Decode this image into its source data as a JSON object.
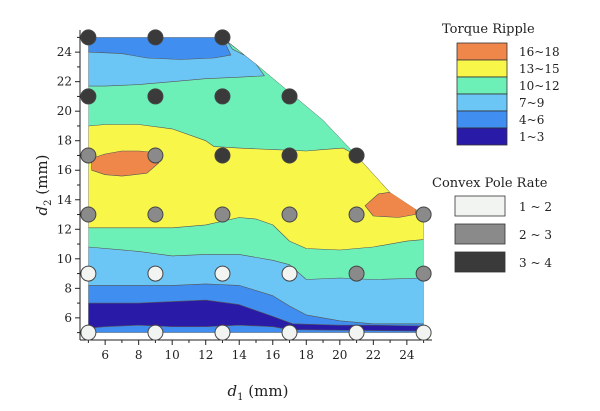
{
  "chart_data": {
    "type": "contour",
    "xlabel_main": "d",
    "xlabel_sub": "1",
    "xlabel_unit": " (mm)",
    "ylabel_main": "d",
    "ylabel_sub": "2",
    "ylabel_unit": " (mm)",
    "xlim": [
      4.5,
      25.5
    ],
    "ylim": [
      4.5,
      25.5
    ],
    "xticks": [
      6,
      8,
      10,
      12,
      14,
      16,
      18,
      20,
      22,
      24
    ],
    "yticks": [
      6,
      8,
      10,
      12,
      14,
      16,
      18,
      20,
      22,
      24
    ],
    "domain_boundary": [
      [
        5,
        5
      ],
      [
        25,
        5
      ],
      [
        25,
        13
      ],
      [
        23,
        14.5
      ],
      [
        21,
        17
      ],
      [
        19,
        19.4
      ],
      [
        17,
        21.3
      ],
      [
        15,
        23.2
      ],
      [
        13,
        25
      ],
      [
        5,
        25
      ]
    ],
    "contour_legend": {
      "title": "Torque Ripple",
      "items": [
        {
          "label": "16~18",
          "color": "#f0874a"
        },
        {
          "label": "13~15",
          "color": "#f9f64a"
        },
        {
          "label": "10~12",
          "color": "#6df0b8"
        },
        {
          "label": "7~9",
          "color": "#6cc6f5"
        },
        {
          "label": "4~6",
          "color": "#3f8ef0"
        },
        {
          "label": "1~3",
          "color": "#2a1aa8"
        }
      ]
    },
    "contour_regions": [
      {
        "level": "10~12",
        "points": [
          [
            5,
            5
          ],
          [
            25,
            5
          ],
          [
            25,
            13
          ],
          [
            23,
            14.5
          ],
          [
            21,
            17
          ],
          [
            19,
            19.4
          ],
          [
            17,
            21.3
          ],
          [
            15,
            23.2
          ],
          [
            13,
            25
          ],
          [
            5,
            25
          ]
        ]
      },
      {
        "level": "7~9",
        "points": [
          [
            5,
            21.7
          ],
          [
            6,
            21.7
          ],
          [
            8,
            21.8
          ],
          [
            10,
            22
          ],
          [
            12,
            22.2
          ],
          [
            14,
            22.3
          ],
          [
            15.5,
            22.4
          ],
          [
            15,
            23.2
          ],
          [
            14,
            24.1
          ],
          [
            13,
            25
          ],
          [
            5,
            25
          ]
        ]
      },
      {
        "level": "4~6",
        "points": [
          [
            5,
            24
          ],
          [
            7,
            23.9
          ],
          [
            8.5,
            23.6
          ],
          [
            10.5,
            23.5
          ],
          [
            12.5,
            23.6
          ],
          [
            13.5,
            23.8
          ],
          [
            13,
            25
          ],
          [
            5,
            25
          ]
        ]
      },
      {
        "level": "10~12",
        "points": [
          [
            13.3,
            24.7
          ],
          [
            14,
            24.1
          ],
          [
            14.3,
            23.8
          ],
          [
            13.6,
            24.2
          ]
        ]
      },
      {
        "level": "13~15",
        "points": [
          [
            5,
            12.1
          ],
          [
            8,
            12.1
          ],
          [
            10,
            12.1
          ],
          [
            12,
            12.3
          ],
          [
            14,
            12.8
          ],
          [
            15,
            12.7
          ],
          [
            16,
            12.3
          ],
          [
            17,
            11.2
          ],
          [
            18,
            10.7
          ],
          [
            20,
            10.6
          ],
          [
            22,
            10.8
          ],
          [
            24,
            11.2
          ],
          [
            25,
            11.3
          ],
          [
            25,
            13
          ],
          [
            23,
            14.5
          ],
          [
            21,
            17
          ],
          [
            20.2,
            17.5
          ],
          [
            19,
            17.4
          ],
          [
            18,
            17.3
          ],
          [
            16,
            17.4
          ],
          [
            14,
            17.5
          ],
          [
            12.5,
            17.6
          ],
          [
            12,
            18
          ],
          [
            10,
            18.8
          ],
          [
            8,
            19.1
          ],
          [
            6,
            19.1
          ],
          [
            5,
            19
          ]
        ]
      },
      {
        "level": "16~18",
        "points": [
          [
            5.2,
            16.8
          ],
          [
            6,
            17.1
          ],
          [
            7,
            17.3
          ],
          [
            8,
            17.3
          ],
          [
            9,
            17.2
          ],
          [
            9.2,
            16.5
          ],
          [
            8.5,
            15.8
          ],
          [
            7,
            15.6
          ],
          [
            6,
            15.7
          ],
          [
            5.2,
            16
          ]
        ]
      },
      {
        "level": "16~18",
        "points": [
          [
            21.5,
            13.6
          ],
          [
            22.3,
            14.4
          ],
          [
            23.5,
            14.6
          ],
          [
            24.6,
            13.6
          ],
          [
            24.5,
            13
          ],
          [
            23.5,
            12.8
          ],
          [
            22,
            12.9
          ]
        ]
      },
      {
        "level": "7~9",
        "points": [
          [
            5,
            5
          ],
          [
            25,
            5
          ],
          [
            25,
            8.7
          ],
          [
            22,
            8.6
          ],
          [
            20,
            8.7
          ],
          [
            18,
            8.6
          ],
          [
            17,
            9.6
          ],
          [
            16,
            9.9
          ],
          [
            14,
            10.3
          ],
          [
            12,
            10.3
          ],
          [
            10,
            10.2
          ],
          [
            8,
            10.5
          ],
          [
            5,
            10.8
          ]
        ]
      },
      {
        "level": "4~6",
        "points": [
          [
            5,
            5
          ],
          [
            25,
            5
          ],
          [
            25,
            5.6
          ],
          [
            22,
            5.6
          ],
          [
            20,
            5.8
          ],
          [
            18,
            6.2
          ],
          [
            17,
            6.8
          ],
          [
            16,
            7.5
          ],
          [
            14,
            8.2
          ],
          [
            12,
            8.3
          ],
          [
            10,
            8.2
          ],
          [
            8,
            8.2
          ],
          [
            6,
            8.2
          ],
          [
            5,
            8.2
          ]
        ]
      },
      {
        "level": "1~3",
        "points": [
          [
            5,
            5.3
          ],
          [
            6,
            5.4
          ],
          [
            8,
            5.5
          ],
          [
            10,
            5.4
          ],
          [
            12,
            5.4
          ],
          [
            14,
            5.5
          ],
          [
            16,
            5.4
          ],
          [
            17,
            5.2
          ],
          [
            25,
            5.1
          ],
          [
            25,
            5.45
          ],
          [
            22,
            5.5
          ],
          [
            20,
            5.5
          ],
          [
            17.2,
            5.6
          ],
          [
            16,
            6.1
          ],
          [
            14,
            6.9
          ],
          [
            12,
            7.2
          ],
          [
            10,
            7.1
          ],
          [
            8,
            7
          ],
          [
            6,
            7
          ],
          [
            5,
            7
          ]
        ]
      }
    ],
    "marker_legend": {
      "title": "Convex Pole Rate",
      "items": [
        {
          "label": "1 ~ 2",
          "color": "#f2f4f2"
        },
        {
          "label": "2 ~ 3",
          "color": "#8a8a8a"
        },
        {
          "label": "3 ~ 4",
          "color": "#3a3a3a"
        }
      ]
    },
    "points": [
      {
        "x": 5,
        "y": 25,
        "rate": "3 ~ 4"
      },
      {
        "x": 9,
        "y": 25,
        "rate": "3 ~ 4"
      },
      {
        "x": 13,
        "y": 25,
        "rate": "3 ~ 4"
      },
      {
        "x": 5,
        "y": 21,
        "rate": "3 ~ 4"
      },
      {
        "x": 9,
        "y": 21,
        "rate": "3 ~ 4"
      },
      {
        "x": 13,
        "y": 21,
        "rate": "3 ~ 4"
      },
      {
        "x": 17,
        "y": 21,
        "rate": "3 ~ 4"
      },
      {
        "x": 5,
        "y": 17,
        "rate": "2 ~ 3"
      },
      {
        "x": 9,
        "y": 17,
        "rate": "2 ~ 3"
      },
      {
        "x": 13,
        "y": 17,
        "rate": "3 ~ 4"
      },
      {
        "x": 17,
        "y": 17,
        "rate": "3 ~ 4"
      },
      {
        "x": 21,
        "y": 17,
        "rate": "3 ~ 4"
      },
      {
        "x": 5,
        "y": 13,
        "rate": "2 ~ 3"
      },
      {
        "x": 9,
        "y": 13,
        "rate": "2 ~ 3"
      },
      {
        "x": 13,
        "y": 13,
        "rate": "2 ~ 3"
      },
      {
        "x": 17,
        "y": 13,
        "rate": "2 ~ 3"
      },
      {
        "x": 21,
        "y": 13,
        "rate": "2 ~ 3"
      },
      {
        "x": 25,
        "y": 13,
        "rate": "2 ~ 3"
      },
      {
        "x": 5,
        "y": 9,
        "rate": "1 ~ 2"
      },
      {
        "x": 9,
        "y": 9,
        "rate": "1 ~ 2"
      },
      {
        "x": 13,
        "y": 9,
        "rate": "1 ~ 2"
      },
      {
        "x": 17,
        "y": 9,
        "rate": "1 ~ 2"
      },
      {
        "x": 21,
        "y": 9,
        "rate": "2 ~ 3"
      },
      {
        "x": 25,
        "y": 9,
        "rate": "2 ~ 3"
      },
      {
        "x": 5,
        "y": 5,
        "rate": "1 ~ 2"
      },
      {
        "x": 9,
        "y": 5,
        "rate": "1 ~ 2"
      },
      {
        "x": 13,
        "y": 5,
        "rate": "1 ~ 2"
      },
      {
        "x": 17,
        "y": 5,
        "rate": "1 ~ 2"
      },
      {
        "x": 21,
        "y": 5,
        "rate": "1 ~ 2"
      },
      {
        "x": 25,
        "y": 5,
        "rate": "1 ~ 2"
      }
    ]
  }
}
